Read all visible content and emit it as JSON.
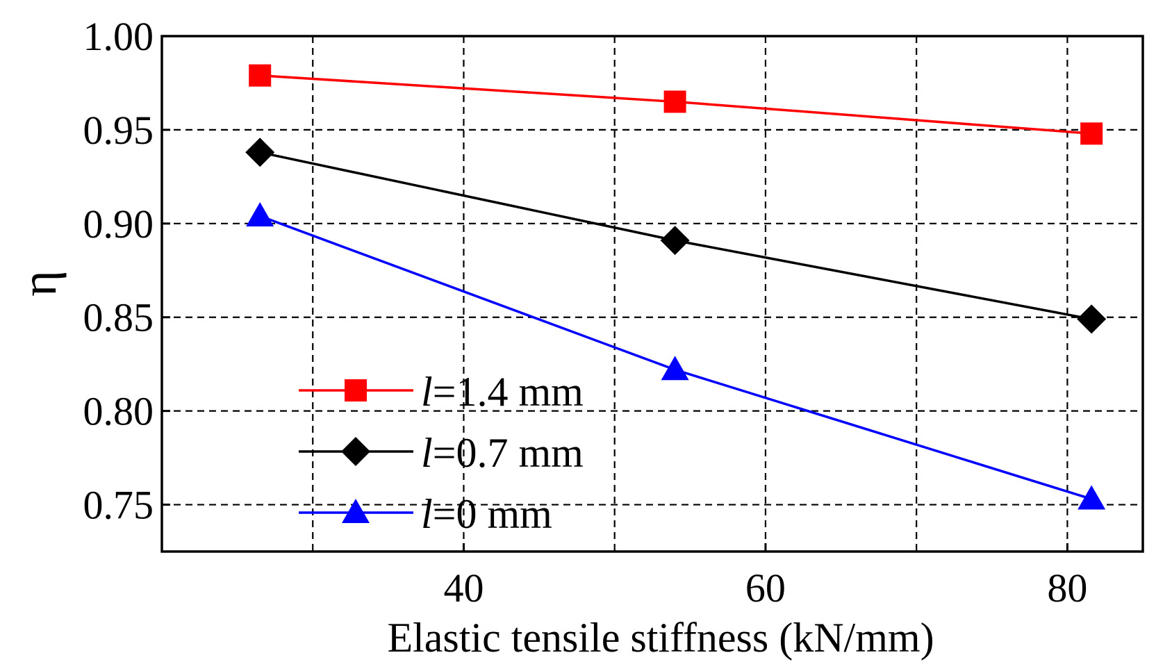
{
  "chart_data": {
    "type": "line",
    "title": "",
    "xlabel": "Elastic tensile stiffness (kN/mm)",
    "ylabel": "η",
    "xlim": [
      20,
      85
    ],
    "ylim": [
      0.725,
      1.0
    ],
    "xticks": [
      40,
      60,
      80
    ],
    "xtick_labels": [
      "40",
      "60",
      "80"
    ],
    "xgrid": [
      30,
      40,
      50,
      60,
      70,
      80
    ],
    "yticks": [
      0.75,
      0.8,
      0.85,
      0.9,
      0.95,
      1.0
    ],
    "ytick_labels": [
      "0.75",
      "0.80",
      "0.85",
      "0.90",
      "0.95",
      "1.00"
    ],
    "grid": true,
    "legend_position": "bottom-left",
    "x": [
      26.5,
      54,
      81.6
    ],
    "series": [
      {
        "name": "l=1.4 mm",
        "prefix": "l",
        "suffix": "=1.4 mm",
        "color": "#ff0000",
        "marker": "square",
        "values": [
          0.979,
          0.965,
          0.948
        ]
      },
      {
        "name": "l=0.7 mm",
        "prefix": "l",
        "suffix": "=0.7 mm",
        "color": "#000000",
        "marker": "diamond",
        "values": [
          0.938,
          0.891,
          0.849
        ]
      },
      {
        "name": "l=0 mm",
        "prefix": "l",
        "suffix": "=0 mm",
        "color": "#0000ff",
        "marker": "triangle",
        "values": [
          0.904,
          0.822,
          0.753
        ]
      }
    ]
  }
}
